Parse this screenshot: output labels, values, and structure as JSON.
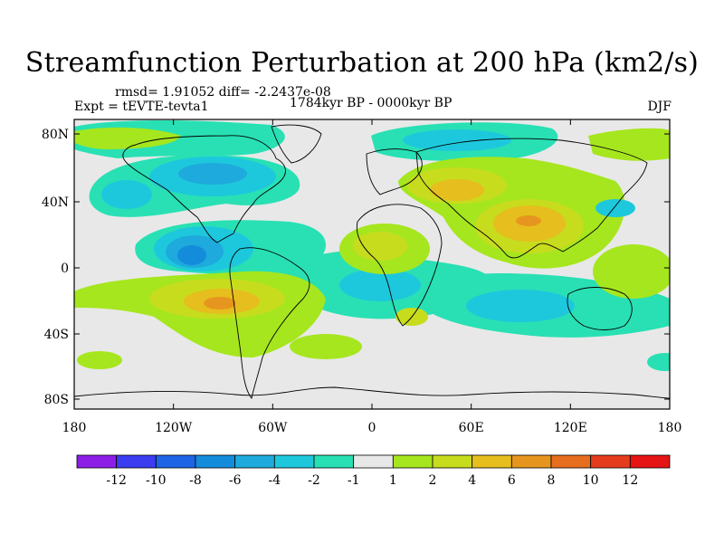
{
  "title": "Streamfunction Perturbation at 200 hPa (km2/s)",
  "stats": "rmsd= 1.91052 diff= -2.2437e-08",
  "experiment": "Expt = tEVTE-tevta1",
  "period": "1784kyr BP - 0000kyr BP",
  "season": "DJF",
  "lat_labels": [
    "80N",
    "40N",
    "0",
    "40S",
    "80S"
  ],
  "lon_labels": [
    "180",
    "120W",
    "60W",
    "0",
    "60E",
    "120E",
    "180"
  ],
  "colorbar": {
    "labels": [
      "-12",
      "-10",
      "-8",
      "-6",
      "-4",
      "-2",
      "-1",
      "1",
      "2",
      "4",
      "6",
      "8",
      "10",
      "12"
    ],
    "colors": [
      "#8c1ee6",
      "#3c3cf0",
      "#1e64e6",
      "#148cdc",
      "#1eaadc",
      "#1ec8dc",
      "#28e0b4",
      "#e8e8e8",
      "#a6e61e",
      "#c8dc1e",
      "#e6be1e",
      "#e6961e",
      "#e66e1e",
      "#e63c1e",
      "#e61414"
    ]
  }
}
